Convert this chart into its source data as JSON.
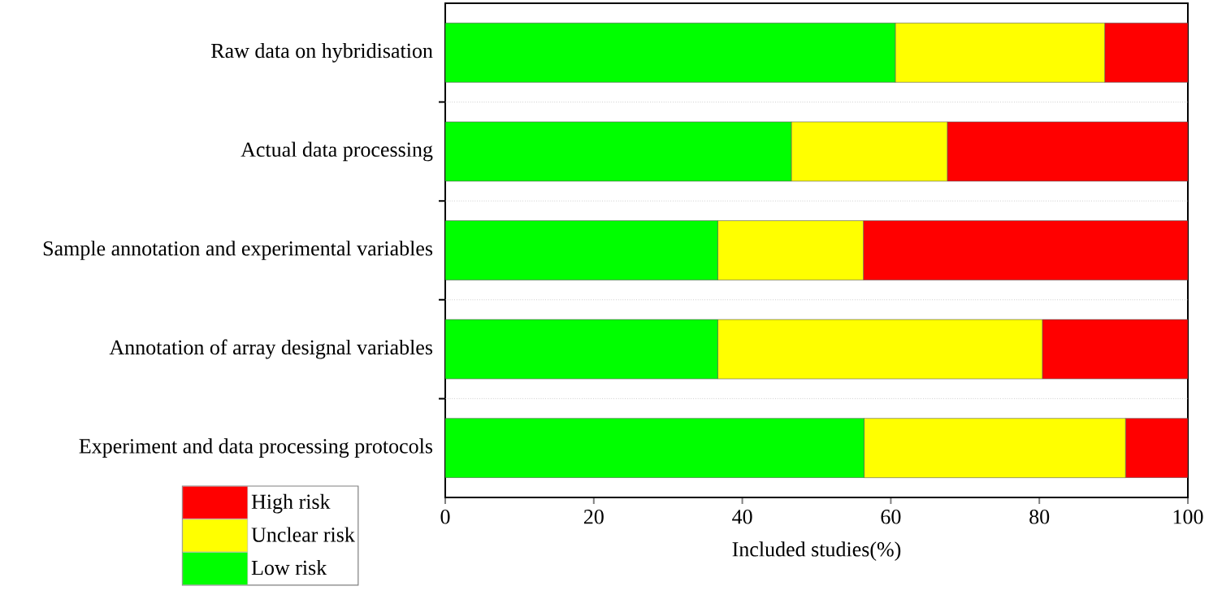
{
  "chart_data": {
    "type": "bar",
    "orientation": "horizontal",
    "stacked": true,
    "categories": [
      "Raw data on hybridisation",
      "Actual data processing",
      "Sample annotation and experimental variables",
      "Annotation of array designal variables",
      "Experiment and data processing protocols"
    ],
    "series": [
      {
        "name": "Low risk",
        "color": "#00ff00",
        "values": [
          60.6,
          46.6,
          36.7,
          36.7,
          56.4
        ]
      },
      {
        "name": "Unclear risk",
        "color": "#ffff00",
        "values": [
          28.2,
          21.0,
          19.6,
          43.7,
          35.2
        ]
      },
      {
        "name": "High risk",
        "color": "#ff0000",
        "values": [
          11.2,
          32.4,
          43.7,
          19.6,
          8.4
        ]
      }
    ],
    "xlabel": "Included studies(%)",
    "xlim": [
      0,
      100
    ],
    "xticks": [
      0,
      20,
      40,
      60,
      80,
      100
    ],
    "grid": "y",
    "legend": "bottom left"
  }
}
